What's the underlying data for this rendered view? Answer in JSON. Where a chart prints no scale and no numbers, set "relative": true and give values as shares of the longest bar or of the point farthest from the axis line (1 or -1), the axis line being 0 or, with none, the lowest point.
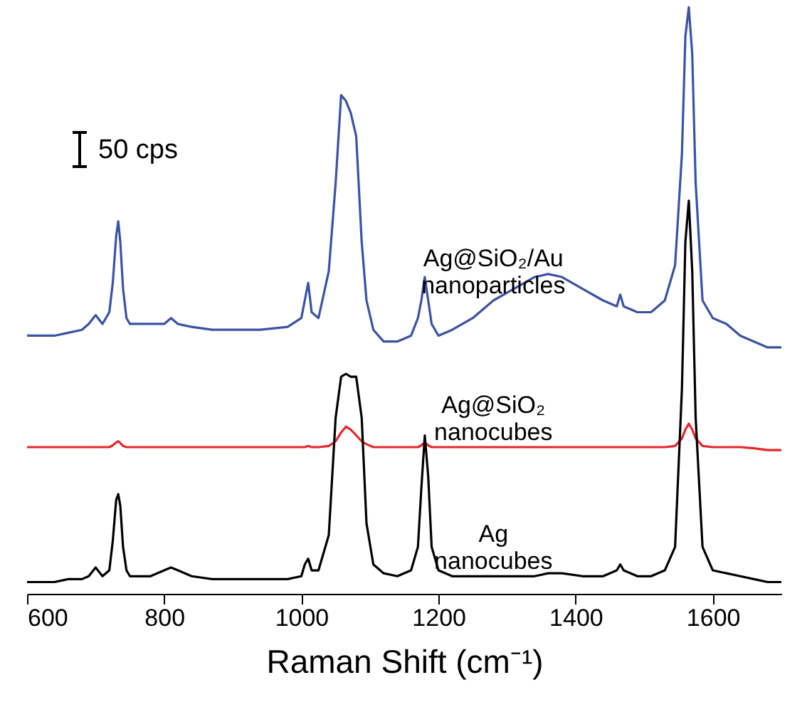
{
  "chart_data": {
    "type": "line",
    "relative": true,
    "xlabel": "Raman Shift (cm⁻¹)",
    "xlim": [
      600,
      1700
    ],
    "xticks": [
      600,
      800,
      1000,
      1200,
      1400,
      1600
    ],
    "grid": false,
    "legend": false,
    "marker": "none",
    "line_style": "solid",
    "annotations": [
      "50 cps"
    ],
    "x": [
      600,
      620,
      640,
      660,
      680,
      690,
      700,
      710,
      720,
      725,
      730,
      733,
      736,
      740,
      745,
      750,
      760,
      780,
      800,
      810,
      820,
      840,
      870,
      900,
      940,
      980,
      1000,
      1005,
      1010,
      1015,
      1025,
      1040,
      1050,
      1058,
      1065,
      1072,
      1080,
      1088,
      1095,
      1105,
      1120,
      1140,
      1160,
      1170,
      1175,
      1180,
      1185,
      1190,
      1200,
      1220,
      1250,
      1280,
      1310,
      1340,
      1360,
      1380,
      1410,
      1440,
      1460,
      1465,
      1470,
      1490,
      1510,
      1530,
      1545,
      1555,
      1560,
      1565,
      1570,
      1575,
      1585,
      1600,
      1620,
      1640,
      1660,
      1680,
      1700
    ],
    "series": [
      {
        "name": "Ag@SiO₂/Au\nnanoparticles",
        "color": "#3a53a4",
        "values": [
          0.44,
          0.44,
          0.44,
          0.445,
          0.45,
          0.46,
          0.475,
          0.46,
          0.48,
          0.53,
          0.61,
          0.635,
          0.6,
          0.52,
          0.47,
          0.46,
          0.46,
          0.46,
          0.46,
          0.47,
          0.46,
          0.455,
          0.45,
          0.45,
          0.45,
          0.455,
          0.47,
          0.5,
          0.53,
          0.48,
          0.47,
          0.55,
          0.7,
          0.85,
          0.84,
          0.82,
          0.78,
          0.6,
          0.5,
          0.45,
          0.43,
          0.43,
          0.44,
          0.47,
          0.5,
          0.54,
          0.5,
          0.46,
          0.44,
          0.45,
          0.47,
          0.5,
          0.52,
          0.54,
          0.545,
          0.54,
          0.52,
          0.5,
          0.49,
          0.51,
          0.49,
          0.48,
          0.48,
          0.5,
          0.56,
          0.75,
          0.95,
          1.0,
          0.92,
          0.7,
          0.5,
          0.47,
          0.46,
          0.44,
          0.43,
          0.42,
          0.42
        ]
      },
      {
        "name": "Ag@SiO₂\nnanocubes",
        "color": "#e8262a",
        "values": [
          0.25,
          0.25,
          0.25,
          0.25,
          0.25,
          0.25,
          0.25,
          0.25,
          0.25,
          0.253,
          0.258,
          0.26,
          0.257,
          0.252,
          0.25,
          0.25,
          0.25,
          0.25,
          0.25,
          0.25,
          0.25,
          0.25,
          0.25,
          0.25,
          0.25,
          0.25,
          0.25,
          0.25,
          0.252,
          0.25,
          0.25,
          0.252,
          0.26,
          0.275,
          0.285,
          0.28,
          0.27,
          0.26,
          0.255,
          0.25,
          0.25,
          0.25,
          0.25,
          0.25,
          0.253,
          0.258,
          0.253,
          0.25,
          0.25,
          0.25,
          0.25,
          0.25,
          0.25,
          0.25,
          0.25,
          0.25,
          0.25,
          0.25,
          0.25,
          0.25,
          0.25,
          0.25,
          0.25,
          0.25,
          0.252,
          0.265,
          0.28,
          0.29,
          0.28,
          0.265,
          0.252,
          0.25,
          0.25,
          0.25,
          0.248,
          0.245,
          0.245
        ]
      },
      {
        "name": "Ag\nnanocubes",
        "color": "#000000",
        "values": [
          0.02,
          0.02,
          0.02,
          0.025,
          0.025,
          0.03,
          0.045,
          0.03,
          0.04,
          0.09,
          0.16,
          0.17,
          0.15,
          0.08,
          0.04,
          0.03,
          0.03,
          0.03,
          0.04,
          0.045,
          0.04,
          0.03,
          0.025,
          0.025,
          0.025,
          0.025,
          0.03,
          0.05,
          0.06,
          0.04,
          0.04,
          0.1,
          0.3,
          0.37,
          0.375,
          0.37,
          0.37,
          0.3,
          0.12,
          0.05,
          0.035,
          0.03,
          0.04,
          0.08,
          0.18,
          0.27,
          0.2,
          0.08,
          0.04,
          0.03,
          0.03,
          0.03,
          0.03,
          0.03,
          0.035,
          0.035,
          0.03,
          0.03,
          0.04,
          0.05,
          0.04,
          0.03,
          0.03,
          0.04,
          0.08,
          0.35,
          0.6,
          0.67,
          0.55,
          0.3,
          0.08,
          0.04,
          0.035,
          0.03,
          0.025,
          0.02,
          0.02
        ]
      }
    ]
  }
}
